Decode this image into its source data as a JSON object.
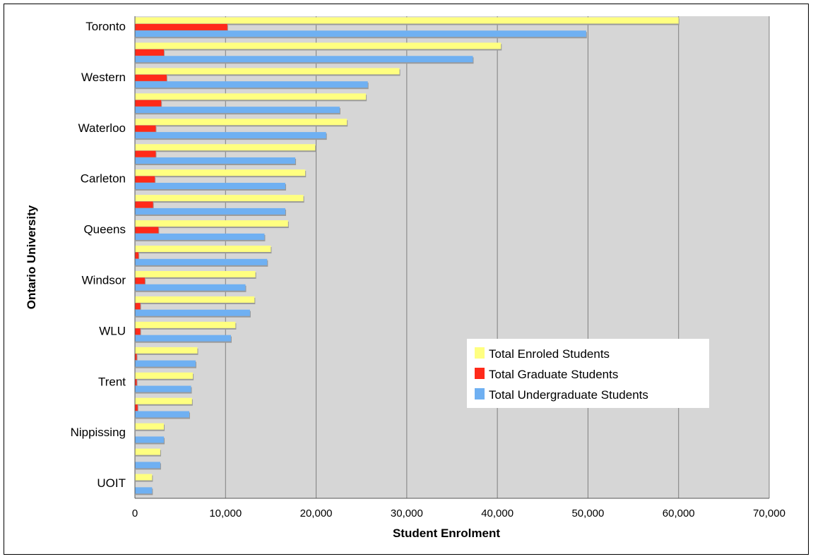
{
  "chart_data": {
    "type": "bar",
    "orientation": "horizontal",
    "xlabel": "Student Enrolment",
    "ylabel": "Ontario University",
    "xlim": [
      0,
      70000
    ],
    "xticks": [
      0,
      10000,
      20000,
      30000,
      40000,
      50000,
      60000,
      70000
    ],
    "xtick_labels": [
      "0",
      "10,000",
      "20,000",
      "30,000",
      "40,000",
      "50,000",
      "60,000",
      "70,000"
    ],
    "grid": "vertical",
    "plot_background": "#d6d6d6",
    "categories": [
      "Toronto",
      "",
      "Western",
      "",
      "Waterloo",
      "",
      "Carleton",
      "",
      "Queens",
      "",
      "Windsor",
      "",
      "WLU",
      "",
      "Trent",
      "",
      "Nippissing",
      "",
      "UOIT"
    ],
    "series": [
      {
        "name": "Total Enroled Students",
        "color": "#ffff80",
        "values": [
          60000,
          40400,
          29200,
          25500,
          23400,
          19900,
          18800,
          18600,
          16900,
          15000,
          13300,
          13200,
          11100,
          6900,
          6400,
          6300,
          3200,
          2800,
          1900
        ]
      },
      {
        "name": "Total Graduate Students",
        "color": "#ff2a1a",
        "values": [
          10200,
          3200,
          3500,
          2900,
          2300,
          2300,
          2200,
          2000,
          2600,
          400,
          1100,
          600,
          600,
          200,
          200,
          300,
          0,
          0,
          0
        ]
      },
      {
        "name": "Total Undergraduate Students",
        "color": "#6fb0f2",
        "values": [
          49800,
          37300,
          25700,
          22600,
          21100,
          17700,
          16600,
          16600,
          14300,
          14600,
          12200,
          12700,
          10600,
          6700,
          6200,
          6000,
          3200,
          2800,
          1900
        ]
      }
    ],
    "legend": {
      "position": "right-lower-inside"
    }
  }
}
